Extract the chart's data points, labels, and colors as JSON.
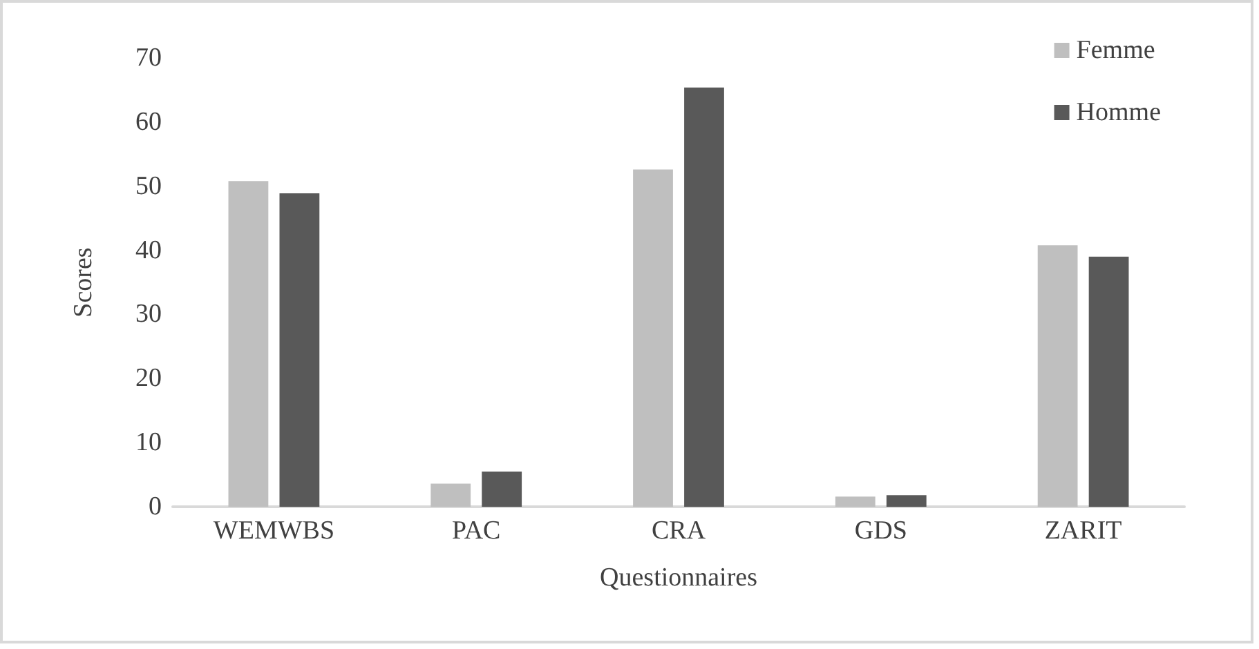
{
  "chart_data": {
    "type": "bar",
    "xlabel": "Questionnaires",
    "ylabel": "Scores",
    "categories": [
      "WEMWBS",
      "PAC",
      "CRA",
      "GDS",
      "ZARIT"
    ],
    "series": [
      {
        "name": "Femme",
        "color": "#bfbfbf",
        "values": [
          50.8,
          3.6,
          52.6,
          1.6,
          40.8
        ]
      },
      {
        "name": "Homme",
        "color": "#595959",
        "values": [
          48.9,
          5.5,
          65.4,
          1.8,
          39.0
        ]
      }
    ],
    "ylim": [
      0,
      70
    ],
    "yticks": [
      0,
      10,
      20,
      30,
      40,
      50,
      60,
      70
    ],
    "grid": false,
    "legend": "top right"
  }
}
